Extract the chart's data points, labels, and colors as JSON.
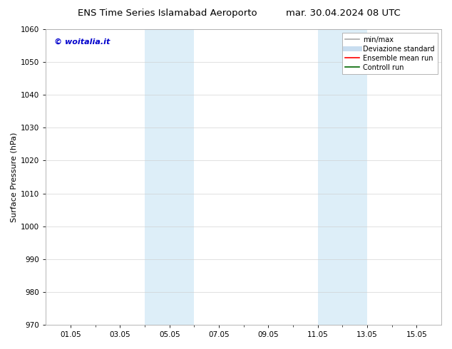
{
  "title_left": "ENS Time Series Islamabad Aeroporto",
  "title_right": "mar. 30.04.2024 08 UTC",
  "ylabel": "Surface Pressure (hPa)",
  "ylim": [
    970,
    1060
  ],
  "yticks": [
    970,
    980,
    990,
    1000,
    1010,
    1020,
    1030,
    1040,
    1050,
    1060
  ],
  "xtick_labels": [
    "01.05",
    "03.05",
    "05.05",
    "07.05",
    "09.05",
    "11.05",
    "13.05",
    "15.05"
  ],
  "xtick_positions": [
    1,
    3,
    5,
    7,
    9,
    11,
    13,
    15
  ],
  "xlim": [
    0,
    16
  ],
  "shaded_regions": [
    {
      "x_start": 4.0,
      "x_end": 6.0,
      "color": "#ddeef8"
    },
    {
      "x_start": 11.0,
      "x_end": 13.0,
      "color": "#ddeef8"
    }
  ],
  "background_color": "#ffffff",
  "watermark_text": "© woitalia.it",
  "watermark_color": "#0000cc",
  "legend_items": [
    {
      "label": "min/max",
      "color": "#aaaaaa",
      "lw": 1.2,
      "linestyle": "-"
    },
    {
      "label": "Deviazione standard",
      "color": "#c8ddf0",
      "lw": 5,
      "linestyle": "-"
    },
    {
      "label": "Ensemble mean run",
      "color": "#ff0000",
      "lw": 1.2,
      "linestyle": "-"
    },
    {
      "label": "Controll run",
      "color": "#006600",
      "lw": 1.2,
      "linestyle": "-"
    }
  ],
  "grid_color": "#cccccc",
  "grid_alpha": 0.7,
  "title_fontsize": 9.5,
  "axis_label_fontsize": 8,
  "tick_fontsize": 7.5,
  "legend_fontsize": 7,
  "watermark_fontsize": 8
}
